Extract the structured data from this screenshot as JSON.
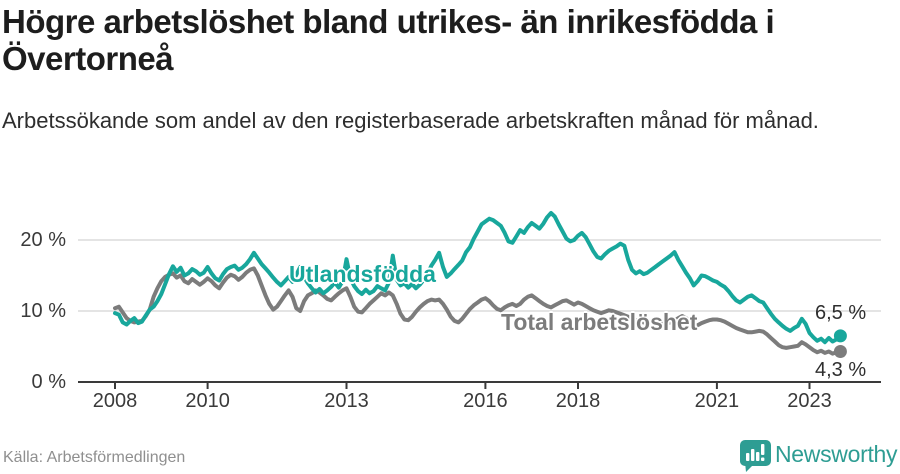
{
  "header": {
    "title": "Högre arbetslöshet bland utrikes- än inrikesfödda i Övertorneå",
    "subtitle": "Arbetssökande som andel av den registerbaserade arbetskraften månad för månad."
  },
  "colors": {
    "accent_teal": "#18a79c",
    "line_gray": "#7c7c7c",
    "grid": "#dcdcdc",
    "axis": "#3a3a3a",
    "text": "#1d1d1d",
    "muted_text": "#8f8f8f",
    "logo_teal": "#2e9d93"
  },
  "chart_data": {
    "type": "line",
    "title": "Högre arbetslöshet bland utrikes- än inrikesfödda i Övertorneå",
    "subtitle": "Arbetssökande som andel av den registerbaserade arbetskraften månad för månad.",
    "x_unit": "month",
    "x_start": "2008-01",
    "x_end": "2023-09",
    "x_tick_years": [
      2008,
      2010,
      2013,
      2016,
      2018,
      2021,
      2023
    ],
    "y_ticks": [
      {
        "value": 0,
        "label": "0 %"
      },
      {
        "value": 10,
        "label": "10 %"
      },
      {
        "value": 20,
        "label": "20 %"
      }
    ],
    "ylim": [
      0,
      25
    ],
    "grid": "horizontal",
    "legend_position": "inline-labels",
    "series": [
      {
        "name": "Utlandsfödda",
        "color": "#18a79c",
        "end_label": "6,5 %",
        "end_value": 6.5,
        "values": [
          9.7,
          9.5,
          8.4,
          8.1,
          8.6,
          9.0,
          8.3,
          8.5,
          9.4,
          10.2,
          10.6,
          11.4,
          12.4,
          13.8,
          15.2,
          16.3,
          15.5,
          16.1,
          15.0,
          15.3,
          15.9,
          15.6,
          15.1,
          15.4,
          16.2,
          15.3,
          14.6,
          14.3,
          15.2,
          15.9,
          16.2,
          16.4,
          15.8,
          16.1,
          16.6,
          17.3,
          18.2,
          17.4,
          16.6,
          16.0,
          15.4,
          14.7,
          14.1,
          13.6,
          14.2,
          14.8,
          14.1,
          15.1,
          16.2,
          14.8,
          13.9,
          13.2,
          12.6,
          13.1,
          12.5,
          12.9,
          13.4,
          14.0,
          13.3,
          14.2,
          17.3,
          14.6,
          13.5,
          12.8,
          12.4,
          13.0,
          12.5,
          12.8,
          13.5,
          13.2,
          12.9,
          14.0,
          17.8,
          14.4,
          13.6,
          13.9,
          13.3,
          13.8,
          13.2,
          13.7,
          14.4,
          15.2,
          16.4,
          17.2,
          18.2,
          16.2,
          14.8,
          15.3,
          15.9,
          16.5,
          17.1,
          18.3,
          19.0,
          20.2,
          21.2,
          22.2,
          22.6,
          23.0,
          22.8,
          22.4,
          22.0,
          21.0,
          19.8,
          19.6,
          20.5,
          21.4,
          21.0,
          21.8,
          22.4,
          22.0,
          21.6,
          22.3,
          23.2,
          23.8,
          23.3,
          22.2,
          21.2,
          20.2,
          19.8,
          20.0,
          20.6,
          21.0,
          20.4,
          19.4,
          18.4,
          17.6,
          17.4,
          18.0,
          18.5,
          18.8,
          19.1,
          19.5,
          19.2,
          17.2,
          15.8,
          15.3,
          15.6,
          15.2,
          15.4,
          15.8,
          16.2,
          16.6,
          17.0,
          17.4,
          17.8,
          18.3,
          17.2,
          16.3,
          15.4,
          14.6,
          13.6,
          14.2,
          15.0,
          14.9,
          14.6,
          14.3,
          14.1,
          13.7,
          13.4,
          12.8,
          12.1,
          11.5,
          11.2,
          11.6,
          12.0,
          12.2,
          11.8,
          11.4,
          11.2,
          10.4,
          9.6,
          8.9,
          8.4,
          7.9,
          7.5,
          7.2,
          7.6,
          7.9,
          8.9,
          8.2,
          6.9,
          6.3,
          5.8,
          6.1,
          5.6,
          6.2,
          5.7,
          6.0,
          6.5
        ]
      },
      {
        "name": "Total arbetslöshet",
        "color": "#7c7c7c",
        "end_label": "4,3 %",
        "end_value": 4.3,
        "values": [
          10.4,
          10.6,
          9.8,
          9.0,
          8.6,
          8.4,
          8.5,
          8.6,
          9.3,
          10.2,
          12.0,
          13.2,
          14.2,
          14.8,
          15.1,
          15.3,
          14.7,
          15.0,
          14.2,
          13.9,
          14.5,
          14.1,
          13.7,
          14.1,
          14.6,
          14.2,
          13.6,
          13.2,
          14.0,
          14.7,
          15.1,
          14.9,
          14.4,
          14.8,
          15.4,
          15.8,
          16.0,
          15.0,
          13.6,
          12.2,
          11.0,
          10.2,
          10.6,
          11.4,
          12.2,
          12.9,
          12.0,
          10.4,
          10.0,
          11.4,
          12.2,
          12.5,
          12.9,
          12.6,
          12.2,
          11.7,
          11.5,
          12.0,
          12.5,
          12.9,
          13.2,
          12.0,
          10.6,
          9.9,
          9.8,
          10.4,
          11.0,
          11.5,
          12.0,
          12.5,
          12.2,
          12.6,
          12.2,
          11.0,
          9.6,
          8.8,
          8.7,
          9.2,
          9.9,
          10.5,
          11.0,
          11.4,
          11.6,
          11.5,
          11.6,
          11.0,
          10.2,
          9.2,
          8.6,
          8.4,
          8.9,
          9.6,
          10.3,
          10.8,
          11.2,
          11.6,
          11.8,
          11.4,
          10.8,
          10.3,
          10.1,
          10.5,
          10.8,
          11.0,
          10.7,
          11.0,
          11.6,
          12.0,
          12.2,
          11.8,
          11.4,
          11.0,
          10.7,
          10.5,
          10.8,
          11.1,
          11.4,
          11.5,
          11.2,
          10.9,
          11.2,
          11.0,
          10.7,
          10.4,
          10.1,
          9.9,
          9.7,
          9.9,
          10.1,
          10.0,
          9.8,
          9.6,
          9.4,
          9.2,
          8.9,
          8.7,
          8.5,
          8.4,
          8.3,
          8.5,
          8.7,
          8.6,
          8.4,
          8.2,
          8.4,
          8.6,
          9.0,
          9.3,
          9.0,
          8.6,
          7.9,
          8.0,
          8.3,
          8.5,
          8.7,
          8.8,
          8.8,
          8.7,
          8.5,
          8.2,
          7.9,
          7.6,
          7.4,
          7.2,
          7.0,
          7.0,
          7.1,
          7.2,
          7.1,
          6.7,
          6.2,
          5.7,
          5.2,
          4.9,
          4.8,
          4.9,
          5.0,
          5.1,
          5.6,
          5.3,
          4.9,
          4.5,
          4.2,
          4.4,
          4.1,
          4.3,
          4.0,
          4.2,
          4.3
        ]
      }
    ]
  },
  "footer": {
    "source": "Källa: Arbetsförmedlingen",
    "logo_text": "Newsworthy"
  }
}
